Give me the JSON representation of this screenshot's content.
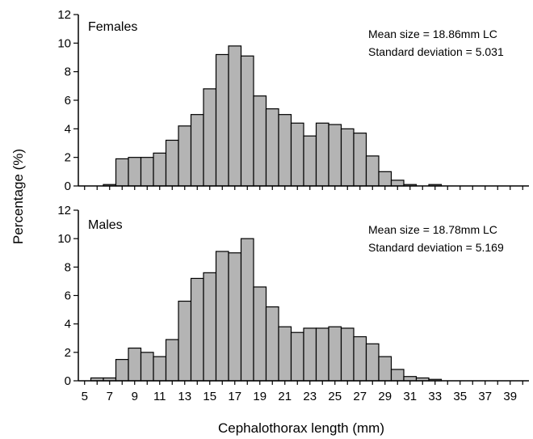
{
  "chart_data": {
    "type": "bar",
    "ylabel": "Percentage (%)",
    "xlabel": "Cephalothorax length (mm)",
    "x_ticks": [
      5,
      7,
      9,
      11,
      13,
      15,
      17,
      19,
      21,
      23,
      25,
      27,
      29,
      31,
      33,
      35,
      37,
      39
    ],
    "x_range": [
      4.5,
      40.5
    ],
    "y_ticks": [
      0,
      2,
      4,
      6,
      8,
      10,
      12
    ],
    "ylim": [
      0,
      12
    ],
    "panels": [
      {
        "label": "Females",
        "stats": [
          "Mean size = 18.86mm LC",
          "Standard deviation = 5.031"
        ],
        "x": [
          7,
          8,
          9,
          10,
          11,
          12,
          13,
          14,
          15,
          16,
          17,
          18,
          19,
          20,
          21,
          22,
          23,
          24,
          25,
          26,
          27,
          28,
          29,
          30,
          31,
          33
        ],
        "values": [
          0.1,
          1.9,
          2.0,
          2.0,
          2.3,
          3.2,
          4.2,
          5.0,
          6.8,
          9.2,
          9.8,
          9.1,
          6.3,
          5.4,
          5.0,
          4.4,
          3.5,
          4.4,
          4.3,
          4.0,
          3.7,
          2.1,
          1.0,
          0.4,
          0.1,
          0.1
        ]
      },
      {
        "label": "Males",
        "stats": [
          "Mean size = 18.78mm LC",
          "Standard deviation = 5.169"
        ],
        "x": [
          6,
          7,
          8,
          9,
          10,
          11,
          12,
          13,
          14,
          15,
          16,
          17,
          18,
          19,
          20,
          21,
          22,
          23,
          24,
          25,
          26,
          27,
          28,
          29,
          30,
          31,
          32,
          33
        ],
        "values": [
          0.2,
          0.2,
          1.5,
          2.3,
          2.0,
          1.7,
          2.9,
          5.6,
          7.2,
          7.6,
          9.1,
          9.0,
          10.0,
          6.6,
          5.2,
          3.8,
          3.4,
          3.7,
          3.7,
          3.8,
          3.7,
          3.1,
          2.6,
          1.7,
          0.8,
          0.3,
          0.2,
          0.1
        ]
      }
    ]
  }
}
